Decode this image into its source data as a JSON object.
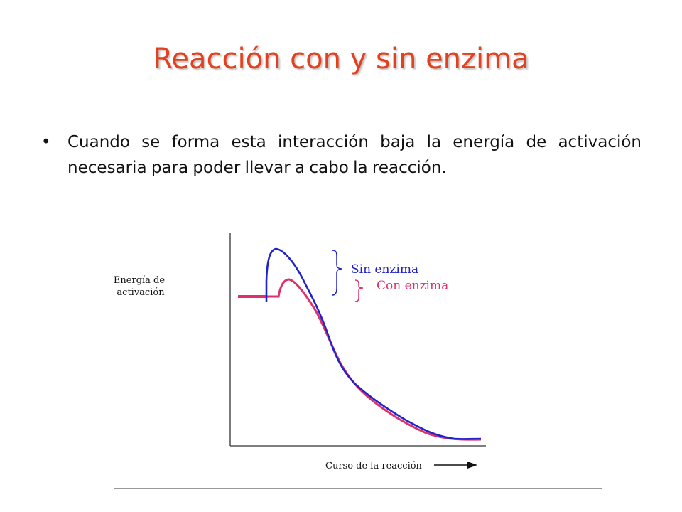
{
  "slide": {
    "title": "Reacción con y sin enzima",
    "bullet": "Cuando se forma esta interacción baja la energía de activación necesaria para poder llevar a cabo la reacción."
  },
  "diagram": {
    "y_label_line1": "Energía de",
    "y_label_line2": "activación",
    "x_label": "Curso de la reacción",
    "legend_sin": "Sin enzima",
    "legend_con": "Con enzima",
    "colors": {
      "title": "#E2401E",
      "sin_enzima": "#1F23C8",
      "con_enzima": "#E0306A",
      "axis": "#333333"
    }
  }
}
